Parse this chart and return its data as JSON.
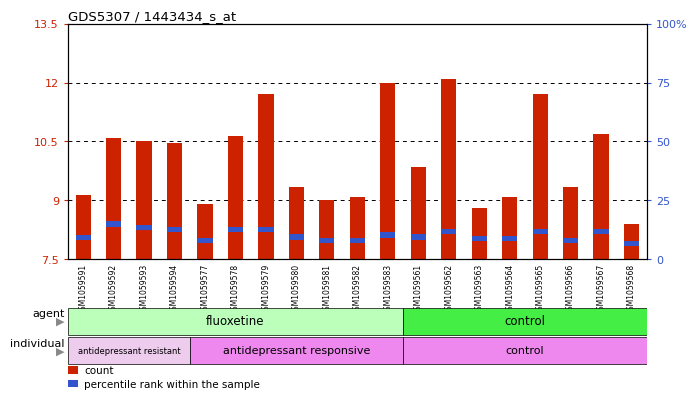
{
  "title": "GDS5307 / 1443434_s_at",
  "samples": [
    "GSM1059591",
    "GSM1059592",
    "GSM1059593",
    "GSM1059594",
    "GSM1059577",
    "GSM1059578",
    "GSM1059579",
    "GSM1059580",
    "GSM1059581",
    "GSM1059582",
    "GSM1059583",
    "GSM1059561",
    "GSM1059562",
    "GSM1059563",
    "GSM1059564",
    "GSM1059565",
    "GSM1059566",
    "GSM1059567",
    "GSM1059568"
  ],
  "counts": [
    9.15,
    10.6,
    10.5,
    10.45,
    8.9,
    10.65,
    11.7,
    9.35,
    9.0,
    9.1,
    12.0,
    9.85,
    12.1,
    8.8,
    9.1,
    11.7,
    9.35,
    10.7,
    8.4
  ],
  "percentile_ranks": [
    8.05,
    8.4,
    8.3,
    8.27,
    7.97,
    8.27,
    8.27,
    8.07,
    7.97,
    7.97,
    8.12,
    8.07,
    8.22,
    8.02,
    8.02,
    8.22,
    7.97,
    8.22,
    7.9
  ],
  "ymin": 7.5,
  "ymax": 13.5,
  "yticks": [
    7.5,
    9.0,
    10.5,
    12.0,
    13.5
  ],
  "ytick_labels": [
    "7.5",
    "9",
    "10.5",
    "12",
    "13.5"
  ],
  "y2ticks": [
    7.5,
    9.0,
    10.5,
    12.0,
    13.5
  ],
  "y2tick_labels": [
    "0",
    "25",
    "50",
    "75",
    "100%"
  ],
  "bar_color": "#cc2200",
  "percentile_color": "#3355cc",
  "agent_groups": [
    {
      "label": "fluoxetine",
      "start": 0,
      "end": 11,
      "color": "#bbffbb"
    },
    {
      "label": "control",
      "start": 11,
      "end": 19,
      "color": "#44ee44"
    }
  ],
  "individual_groups": [
    {
      "label": "antidepressant resistant",
      "start": 0,
      "end": 4,
      "color": "#eeccee",
      "fontsize": 6
    },
    {
      "label": "antidepressant responsive",
      "start": 4,
      "end": 11,
      "color": "#ee88ee",
      "fontsize": 8
    },
    {
      "label": "control",
      "start": 11,
      "end": 19,
      "color": "#ee88ee",
      "fontsize": 8
    }
  ],
  "plot_bg": "#ffffff",
  "xtick_bg": "#d8d8d8",
  "legend_items": [
    {
      "color": "#cc2200",
      "label": "count"
    },
    {
      "color": "#3355cc",
      "label": "percentile rank within the sample"
    }
  ]
}
